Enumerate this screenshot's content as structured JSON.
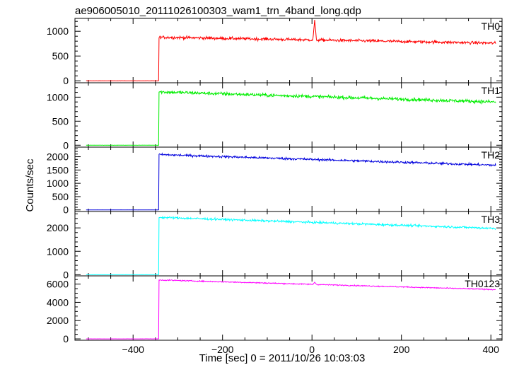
{
  "chart_data": {
    "type": "line",
    "title": "ae906005010_20111026100303_wam1_trn_4band_long.qdp",
    "xlabel": "Time [sec] 0 = 2011/10/26 10:03:03",
    "ylabel": "Counts/sec",
    "xlim": [
      -530,
      425
    ],
    "xticks": [
      -400,
      -200,
      0,
      200,
      400
    ],
    "xtick_labels": [
      "−400",
      "−200",
      "0",
      "200",
      "400"
    ],
    "grid": false,
    "x_start": -505,
    "x_step": 1,
    "panels": [
      {
        "name": "TH0",
        "color": "#ff0000",
        "ylim": [
          -40,
          1260
        ],
        "yticks": [
          0,
          500,
          1000
        ],
        "yticks_minor_step": 100,
        "pre_level": 0,
        "jump_time": -342,
        "post_start": 880,
        "post_end": 760,
        "noise": 55,
        "spikes": [
          {
            "t": 6,
            "value": 1230,
            "width": 4
          }
        ]
      },
      {
        "name": "TH1",
        "color": "#00ee00",
        "ylim": [
          -40,
          1300
        ],
        "yticks": [
          0,
          500,
          1000
        ],
        "yticks_minor_step": 100,
        "pre_level": 0,
        "jump_time": -342,
        "post_start": 1110,
        "post_end": 900,
        "noise": 65,
        "spikes": []
      },
      {
        "name": "TH2",
        "color": "#0000dd",
        "ylim": [
          -60,
          2360
        ],
        "yticks": [
          0,
          500,
          1000,
          1500,
          2000
        ],
        "yticks_minor_step": 100,
        "pre_level": 0,
        "jump_time": -342,
        "post_start": 2080,
        "post_end": 1680,
        "noise": 80,
        "spikes": []
      },
      {
        "name": "TH3",
        "color": "#00ffff",
        "ylim": [
          -50,
          2700
        ],
        "yticks": [
          0,
          1000,
          2000
        ],
        "yticks_minor_step": 200,
        "pre_level": 0,
        "jump_time": -342,
        "post_start": 2450,
        "post_end": 1980,
        "noise": 85,
        "spikes": []
      },
      {
        "name": "TH0123",
        "color": "#ff00ff",
        "ylim": [
          -150,
          6900
        ],
        "yticks": [
          0,
          2000,
          4000,
          6000
        ],
        "yticks_minor_step": 500,
        "pre_level": 0,
        "jump_time": -342,
        "post_start": 6450,
        "post_end": 5400,
        "noise": 110,
        "spikes": [
          {
            "t": 6,
            "value": 6200,
            "width": 4
          }
        ]
      }
    ]
  }
}
